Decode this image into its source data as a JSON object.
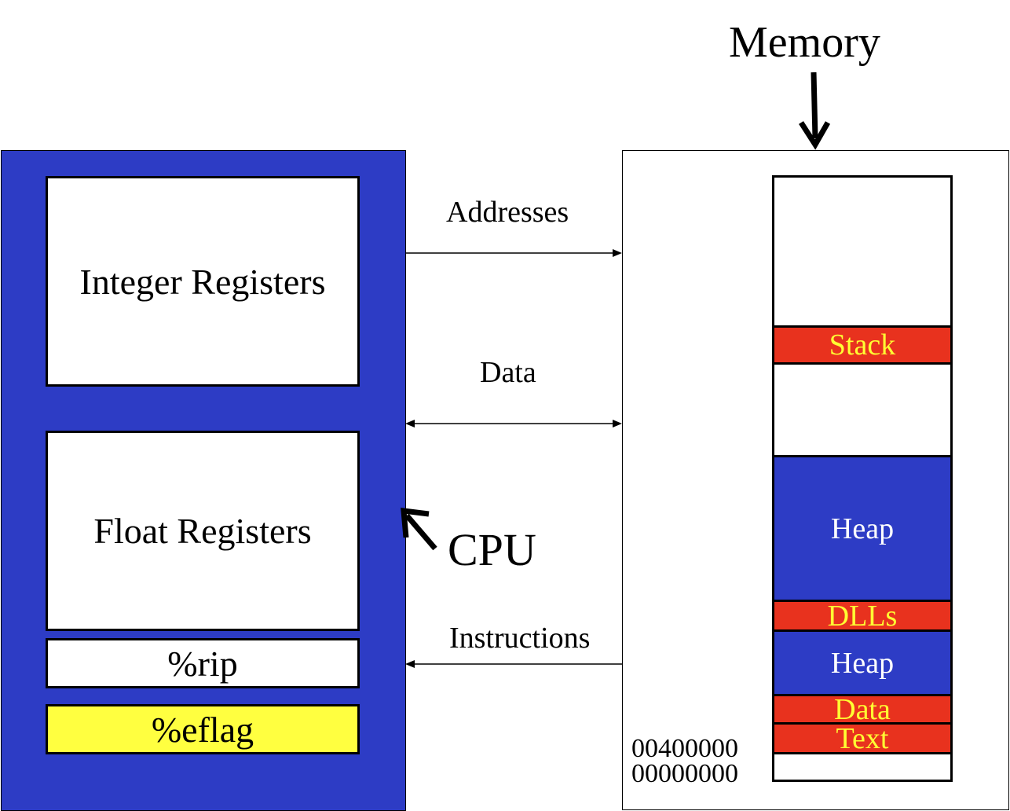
{
  "memory_label": "Memory",
  "cpu_label": "CPU",
  "cpu": {
    "integer_registers": "Integer Registers",
    "float_registers": "Float Registers",
    "rip": "%rip",
    "eflag": "%eflag"
  },
  "buses": {
    "addresses": "Addresses",
    "data": "Data",
    "instructions": "Instructions"
  },
  "memory_segments": {
    "stack": "Stack",
    "heap_upper": "Heap",
    "dlls": "DLLs",
    "heap_lower": "Heap",
    "data": "Data",
    "text": "Text"
  },
  "addresses": {
    "text_start": "00400000",
    "zero": "00000000"
  },
  "colors": {
    "cpu_blue": "#2d3cc5",
    "segment_red": "#e8321e",
    "segment_label_yellow": "#ffff33",
    "eflag_yellow": "#ffff40"
  }
}
